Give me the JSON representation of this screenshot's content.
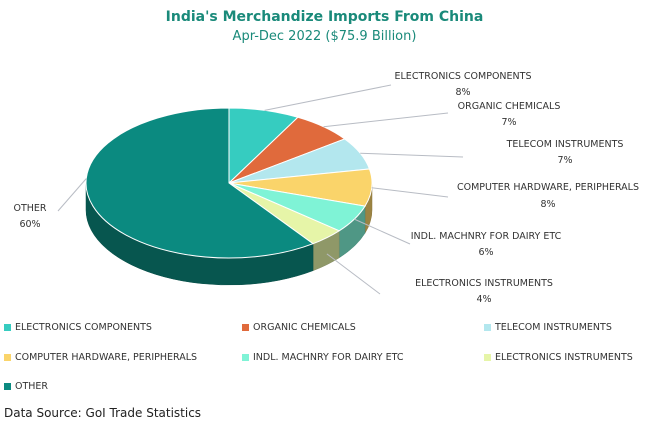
{
  "chart_data": {
    "type": "pie",
    "title": "India's  Merchandize Imports From China",
    "subtitle": "Apr-Dec 2022 ($75.9 Billion)",
    "slices": [
      {
        "label": "ELECTRONICS COMPONENTS",
        "value": 8,
        "value_label": "8%",
        "color": "#36ccc0"
      },
      {
        "label": "ORGANIC CHEMICALS",
        "value": 7,
        "value_label": "7%",
        "color": "#e06a3c"
      },
      {
        "label": "TELECOM INSTRUMENTS",
        "value": 7,
        "value_label": "7%",
        "color": "#b3e7ee"
      },
      {
        "label": "COMPUTER HARDWARE, PERIPHERALS",
        "value": 8,
        "value_label": "8%",
        "color": "#fad46a"
      },
      {
        "label": "INDL. MACHNRY FOR DAIRY ETC",
        "value": 6,
        "value_label": "6%",
        "color": "#7ff3d6"
      },
      {
        "label": "ELECTRONICS INSTRUMENTS",
        "value": 4,
        "value_label": "4%",
        "color": "#e6f5a8"
      },
      {
        "label": "OTHER",
        "value": 60,
        "value_label": "60%",
        "color": "#0b8a80"
      }
    ],
    "legend_position": "bottom"
  },
  "source": "Data Source: GoI Trade Statistics"
}
